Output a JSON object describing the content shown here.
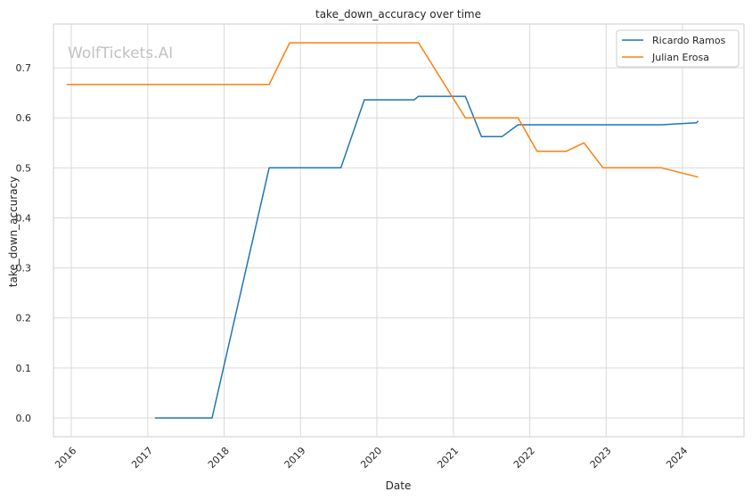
{
  "chart_data": {
    "type": "line",
    "title": "take_down_accuracy over time",
    "xlabel": "Date",
    "ylabel": "take_down_accuracy",
    "watermark": "WolfTickets.AI",
    "xlim": [
      "2015-10-08",
      "2024-10-21"
    ],
    "ylim": [
      -0.0375,
      0.7875
    ],
    "x_ticks": [
      "2016-01-01",
      "2017-01-01",
      "2018-01-01",
      "2019-01-01",
      "2020-01-01",
      "2021-01-01",
      "2022-01-01",
      "2023-01-01",
      "2024-01-01"
    ],
    "x_tick_labels": [
      "2016",
      "2017",
      "2018",
      "2019",
      "2020",
      "2021",
      "2022",
      "2023",
      "2024"
    ],
    "y_ticks": [
      0.0,
      0.1,
      0.2,
      0.3,
      0.4,
      0.5,
      0.6,
      0.7
    ],
    "y_tick_labels": [
      "0.0",
      "0.1",
      "0.2",
      "0.3",
      "0.4",
      "0.5",
      "0.6",
      "0.7"
    ],
    "grid": true,
    "legend_position": "top-right",
    "series": [
      {
        "name": "Ricardo Ramos",
        "color": "#1f77b4",
        "points": [
          [
            "2017-02-04",
            0.0
          ],
          [
            "2017-11-04",
            0.0
          ],
          [
            "2018-08-04",
            0.5
          ],
          [
            "2019-07-13",
            0.5
          ],
          [
            "2019-11-02",
            0.636
          ],
          [
            "2020-06-27",
            0.636
          ],
          [
            "2020-07-18",
            0.643
          ],
          [
            "2021-02-27",
            0.643
          ],
          [
            "2021-05-15",
            0.5625
          ],
          [
            "2021-08-21",
            0.5625
          ],
          [
            "2021-11-06",
            0.5862
          ],
          [
            "2023-09-23",
            0.5862
          ],
          [
            "2024-03-09",
            0.5903
          ],
          [
            "2024-03-16",
            0.5938
          ]
        ]
      },
      {
        "name": "Julian Erosa",
        "color": "#ff7f0e",
        "points": [
          [
            "2015-12-10",
            0.6667
          ],
          [
            "2018-08-04",
            0.6667
          ],
          [
            "2018-11-10",
            0.75
          ],
          [
            "2020-07-18",
            0.75
          ],
          [
            "2021-02-27",
            0.6
          ],
          [
            "2021-11-06",
            0.6
          ],
          [
            "2022-02-05",
            0.5333
          ],
          [
            "2022-06-25",
            0.5333
          ],
          [
            "2022-09-17",
            0.55
          ],
          [
            "2022-12-17",
            0.5
          ],
          [
            "2023-09-23",
            0.5
          ],
          [
            "2024-03-16",
            0.4815
          ]
        ]
      }
    ]
  }
}
